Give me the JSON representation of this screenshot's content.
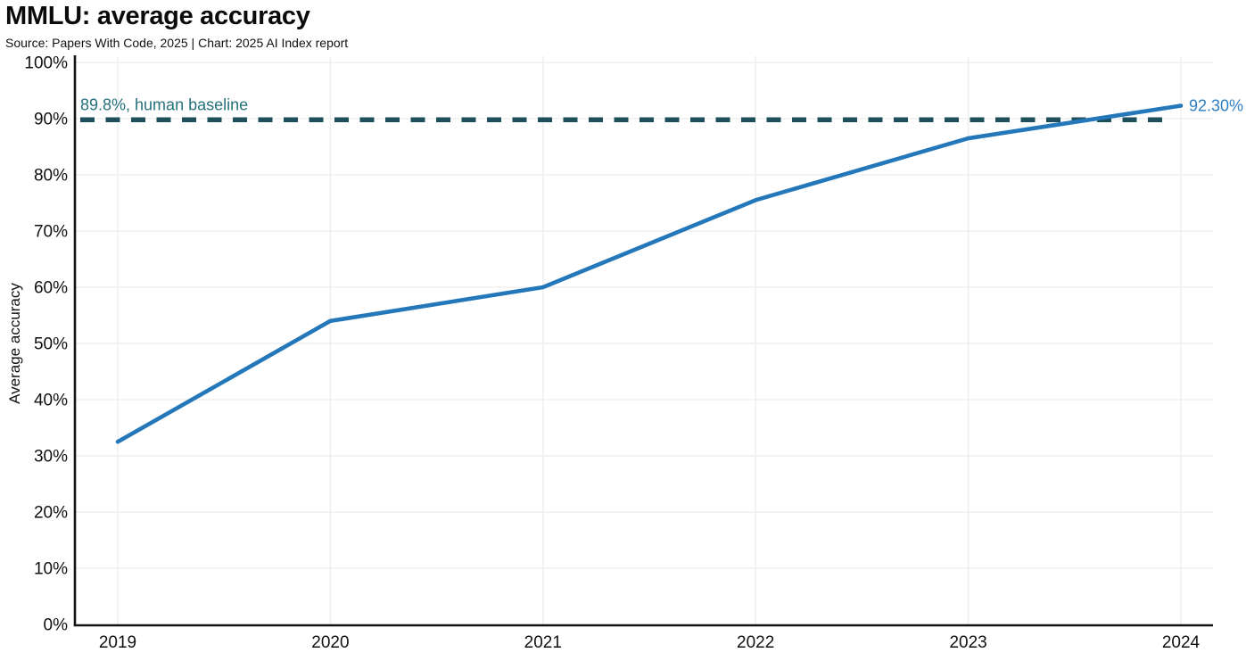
{
  "header": {
    "title": "MMLU: average accuracy",
    "source_line": "Source: Papers With Code, 2025 | Chart: 2025 AI Index report"
  },
  "chart_data": {
    "type": "line",
    "title": "MMLU: average accuracy",
    "categories": [
      "2019",
      "2020",
      "2021",
      "2022",
      "2023",
      "2024"
    ],
    "series": [
      {
        "name": "MMLU average accuracy",
        "values": [
          32.5,
          54.0,
          60.0,
          75.5,
          86.5,
          92.3
        ],
        "color": "#2478ba"
      }
    ],
    "xlabel": "",
    "ylabel": "Average accuracy",
    "ylim": [
      0,
      100
    ],
    "ytick_step": 10,
    "tick_suffix": "%",
    "grid": true,
    "legend": "none",
    "reference_line": {
      "value": 89.8,
      "label": "89.8%, human baseline",
      "style": "dashed",
      "line_color": "#1d505c",
      "label_color": "#26707b"
    },
    "last_point_label": {
      "text": "92.30%",
      "color": "#2e7fc1"
    },
    "axis_color": "#131313",
    "grid_color": "#efefef",
    "tick_label_color": "#111111"
  }
}
